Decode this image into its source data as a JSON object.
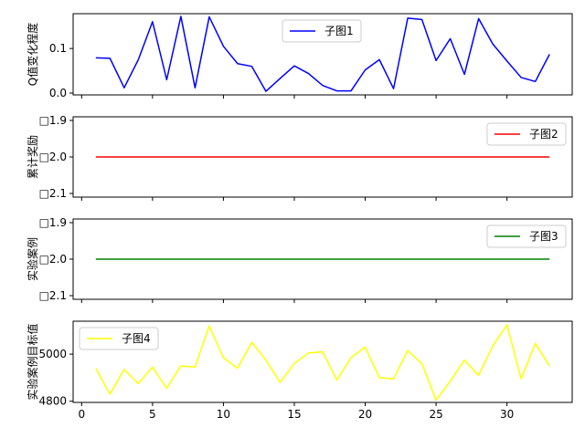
{
  "chart_data": [
    {
      "type": "line",
      "ylabel": "Q值变化程度",
      "xlim": [
        -0.6,
        34.6
      ],
      "ylim": [
        -0.004,
        0.178
      ],
      "yticks": [
        0.0,
        0.1
      ],
      "ytick_labels": [
        "0.0",
        "0.1"
      ],
      "xticks": [
        0,
        5,
        10,
        15,
        20,
        25,
        30
      ],
      "show_xtick_labels": false,
      "legend_position": "upper-center",
      "series": [
        {
          "name": "子图1",
          "color": "#0000ff",
          "x": [
            1,
            2,
            3,
            4,
            5,
            6,
            7,
            8,
            9,
            10,
            11,
            12,
            13,
            14,
            15,
            16,
            17,
            18,
            19,
            20,
            21,
            22,
            23,
            24,
            25,
            26,
            27,
            28,
            29,
            30,
            31,
            32,
            33
          ],
          "y": [
            0.079,
            0.078,
            0.012,
            0.075,
            0.16,
            0.03,
            0.172,
            0.012,
            0.171,
            0.105,
            0.066,
            0.06,
            0.004,
            0.033,
            0.061,
            0.044,
            0.017,
            0.005,
            0.005,
            0.052,
            0.075,
            0.01,
            0.168,
            0.165,
            0.073,
            0.122,
            0.042,
            0.167,
            0.11,
            0.072,
            0.035,
            0.026,
            0.087
          ]
        }
      ]
    },
    {
      "type": "line",
      "ylabel": "累计奖励",
      "xlim": [
        -0.6,
        34.6
      ],
      "ylim": [
        -2.11,
        -1.89
      ],
      "yticks": [
        -1.9,
        -2.0,
        -2.1
      ],
      "ytick_labels": [
        "□1.9",
        "□2.0",
        "□2.1"
      ],
      "xticks": [
        0,
        5,
        10,
        15,
        20,
        25,
        30
      ],
      "show_xtick_labels": false,
      "legend_position": "upper-right",
      "series": [
        {
          "name": "子图2",
          "color": "#ff0000",
          "x": [
            1,
            33
          ],
          "y": [
            -2.0,
            -2.0
          ]
        }
      ]
    },
    {
      "type": "line",
      "ylabel": "实验案例",
      "xlim": [
        -0.6,
        34.6
      ],
      "ylim": [
        -2.11,
        -1.89
      ],
      "yticks": [
        -1.9,
        -2.0,
        -2.1
      ],
      "ytick_labels": [
        "□1.9",
        "□2.0",
        "□2.1"
      ],
      "xticks": [
        0,
        5,
        10,
        15,
        20,
        25,
        30
      ],
      "show_xtick_labels": false,
      "legend_position": "upper-right",
      "series": [
        {
          "name": "子图3",
          "color": "#008000",
          "x": [
            1,
            33
          ],
          "y": [
            -2.0,
            -2.0
          ]
        }
      ]
    },
    {
      "type": "line",
      "ylabel": "实验案例目标值",
      "xlim": [
        -0.6,
        34.6
      ],
      "ylim": [
        4795,
        5140
      ],
      "yticks": [
        4800,
        5000
      ],
      "ytick_labels": [
        "4800",
        "5000"
      ],
      "xticks": [
        0,
        5,
        10,
        15,
        20,
        25,
        30
      ],
      "xtick_labels": [
        "0",
        "5",
        "10",
        "15",
        "20",
        "25",
        "30"
      ],
      "show_xtick_labels": true,
      "legend_position": "upper-left",
      "series": [
        {
          "name": "子图4",
          "color": "#ffff00",
          "x": [
            1,
            2,
            3,
            4,
            5,
            6,
            7,
            8,
            9,
            10,
            11,
            12,
            13,
            14,
            15,
            16,
            17,
            18,
            19,
            20,
            21,
            22,
            23,
            24,
            25,
            26,
            27,
            28,
            29,
            30,
            31,
            32,
            33
          ],
          "y": [
            4940,
            4830,
            4935,
            4875,
            4945,
            4855,
            4950,
            4945,
            5120,
            4985,
            4940,
            5050,
            4975,
            4880,
            4960,
            5005,
            5010,
            4890,
            4985,
            5030,
            4900,
            4895,
            5015,
            4960,
            4805,
            4885,
            4975,
            4910,
            5035,
            5125,
            4895,
            5045,
            4950
          ]
        }
      ]
    }
  ]
}
